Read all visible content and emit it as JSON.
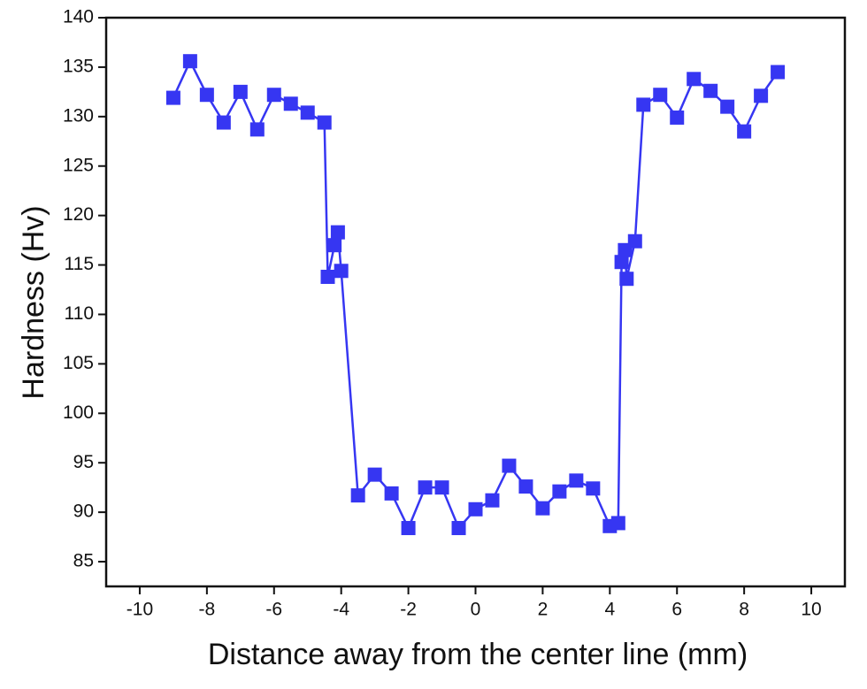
{
  "chart_data": {
    "type": "line",
    "x_label": "Distance away from the center line (mm)",
    "y_label": "Hardness (Hv)",
    "xlim": [
      -11,
      11
    ],
    "xticks": [
      -10,
      -8,
      -6,
      -4,
      -2,
      0,
      2,
      4,
      6,
      8,
      10
    ],
    "ylim": [
      82.5,
      140
    ],
    "yticks": [
      85,
      90,
      95,
      100,
      105,
      110,
      115,
      120,
      125,
      130,
      135,
      140
    ],
    "series": [
      {
        "color": "#3636f2",
        "x": [
          -9,
          -8.5,
          -8,
          -7.5,
          -7,
          -6.5,
          -6,
          -5.5,
          -5,
          -4.5,
          -4.4,
          -4.2,
          -4.1,
          -4,
          -3.5,
          -3,
          -2.5,
          -2,
          -1.5,
          -1,
          -0.5,
          0,
          0.5,
          1,
          1.5,
          2,
          2.5,
          3,
          3.5,
          4,
          4.25,
          4.35,
          4.45,
          4.5,
          4.75,
          5,
          5.5,
          6,
          6.5,
          7,
          7.5,
          8,
          8.5,
          9
        ],
        "values": [
          131.9,
          135.6,
          132.2,
          129.4,
          132.5,
          128.7,
          132.2,
          131.3,
          130.4,
          129.4,
          113.8,
          117.0,
          118.3,
          114.4,
          91.7,
          93.8,
          91.9,
          88.4,
          92.5,
          92.5,
          88.4,
          90.3,
          91.2,
          94.7,
          92.6,
          90.4,
          92.1,
          93.2,
          92.4,
          88.6,
          88.9,
          115.3,
          116.5,
          113.6,
          117.4,
          131.2,
          132.2,
          129.9,
          133.8,
          132.6,
          131.0,
          128.5,
          132.1,
          134.5
        ]
      }
    ]
  }
}
